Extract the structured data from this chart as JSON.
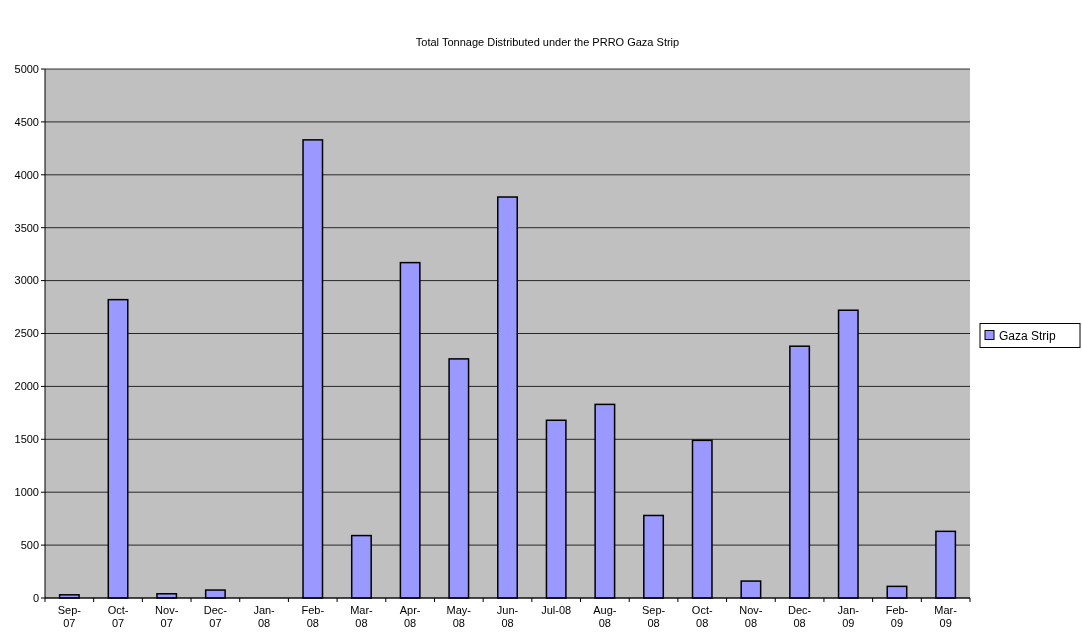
{
  "chart_data": {
    "type": "bar",
    "title": "Total Tonnage Distributed under the PRRO Gaza Strip",
    "categories": [
      "Sep-07",
      "Oct-07",
      "Nov-07",
      "Dec-07",
      "Jan-08",
      "Feb-08",
      "Mar-08",
      "Apr-08",
      "May-08",
      "Jun-08",
      "Jul-08",
      "Aug-08",
      "Sep-08",
      "Oct-08",
      "Nov-08",
      "Dec-08",
      "Jan-09",
      "Feb-09",
      "Mar-09"
    ],
    "series": [
      {
        "name": "Gaza Strip",
        "color": "#9999ff",
        "values": [
          30,
          2820,
          40,
          75,
          0,
          4330,
          590,
          3170,
          2260,
          3790,
          1680,
          1830,
          780,
          1490,
          160,
          2380,
          2720,
          110,
          630
        ]
      }
    ],
    "ylim": [
      0,
      5000
    ],
    "yticks": [
      0,
      500,
      1000,
      1500,
      2000,
      2500,
      3000,
      3500,
      4000,
      4500,
      5000
    ],
    "grid": "y",
    "legend": "right"
  }
}
